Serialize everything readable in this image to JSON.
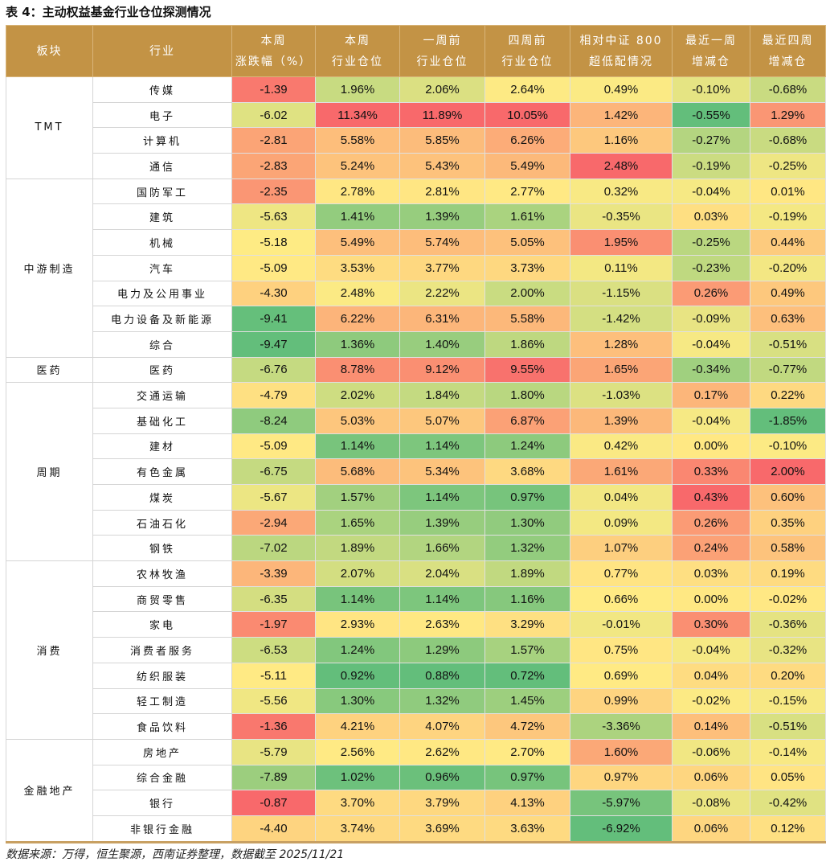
{
  "title": "表 4：主动权益基金行业仓位探测情况",
  "headers": [
    [
      "板块"
    ],
    [
      "行业"
    ],
    [
      "本周",
      "涨跌幅（%）"
    ],
    [
      "本周",
      "行业仓位"
    ],
    [
      "一周前",
      "行业仓位"
    ],
    [
      "四周前",
      "行业仓位"
    ],
    [
      "相对中证 800",
      "超低配情况"
    ],
    [
      "最近一周",
      "增减仓"
    ],
    [
      "最近四周",
      "增减仓"
    ]
  ],
  "color_scale": {
    "high": "#F8696B",
    "mid": "#FFEB84",
    "low": "#63BE7B"
  },
  "groups": [
    {
      "name": "TMT",
      "rows": [
        [
          "传媒",
          "-1.39",
          "1.96%",
          "2.06%",
          "2.64%",
          "0.49%",
          "-0.10%",
          "-0.68%"
        ],
        [
          "电子",
          "-6.02",
          "11.34%",
          "11.89%",
          "10.05%",
          "1.42%",
          "-0.55%",
          "1.29%"
        ],
        [
          "计算机",
          "-2.81",
          "5.58%",
          "5.85%",
          "6.26%",
          "1.16%",
          "-0.27%",
          "-0.68%"
        ],
        [
          "通信",
          "-2.83",
          "5.24%",
          "5.43%",
          "5.49%",
          "2.48%",
          "-0.19%",
          "-0.25%"
        ]
      ]
    },
    {
      "name": "中游制造",
      "rows": [
        [
          "国防军工",
          "-2.35",
          "2.78%",
          "2.81%",
          "2.77%",
          "0.32%",
          "-0.04%",
          "0.01%"
        ],
        [
          "建筑",
          "-5.63",
          "1.41%",
          "1.39%",
          "1.61%",
          "-0.35%",
          "0.03%",
          "-0.19%"
        ],
        [
          "机械",
          "-5.18",
          "5.49%",
          "5.74%",
          "5.05%",
          "1.95%",
          "-0.25%",
          "0.44%"
        ],
        [
          "汽车",
          "-5.09",
          "3.53%",
          "3.77%",
          "3.73%",
          "0.11%",
          "-0.23%",
          "-0.20%"
        ],
        [
          "电力及公用事业",
          "-4.30",
          "2.48%",
          "2.22%",
          "2.00%",
          "-1.15%",
          "0.26%",
          "0.49%"
        ],
        [
          "电力设备及新能源",
          "-9.41",
          "6.22%",
          "6.31%",
          "5.58%",
          "-1.42%",
          "-0.09%",
          "0.63%"
        ],
        [
          "综合",
          "-9.47",
          "1.36%",
          "1.40%",
          "1.86%",
          "1.28%",
          "-0.04%",
          "-0.51%"
        ]
      ]
    },
    {
      "name": "医药",
      "rows": [
        [
          "医药",
          "-6.76",
          "8.78%",
          "9.12%",
          "9.55%",
          "1.65%",
          "-0.34%",
          "-0.77%"
        ]
      ]
    },
    {
      "name": "周期",
      "rows": [
        [
          "交通运输",
          "-4.79",
          "2.02%",
          "1.84%",
          "1.80%",
          "-1.03%",
          "0.17%",
          "0.22%"
        ],
        [
          "基础化工",
          "-8.24",
          "5.03%",
          "5.07%",
          "6.87%",
          "1.39%",
          "-0.04%",
          "-1.85%"
        ],
        [
          "建材",
          "-5.09",
          "1.14%",
          "1.14%",
          "1.24%",
          "0.42%",
          "0.00%",
          "-0.10%"
        ],
        [
          "有色金属",
          "-6.75",
          "5.68%",
          "5.34%",
          "3.68%",
          "1.61%",
          "0.33%",
          "2.00%"
        ],
        [
          "煤炭",
          "-5.67",
          "1.57%",
          "1.14%",
          "0.97%",
          "0.04%",
          "0.43%",
          "0.60%"
        ],
        [
          "石油石化",
          "-2.94",
          "1.65%",
          "1.39%",
          "1.30%",
          "0.09%",
          "0.26%",
          "0.35%"
        ],
        [
          "钢铁",
          "-7.02",
          "1.89%",
          "1.66%",
          "1.32%",
          "1.07%",
          "0.24%",
          "0.58%"
        ]
      ]
    },
    {
      "name": "消费",
      "rows": [
        [
          "农林牧渔",
          "-3.39",
          "2.07%",
          "2.04%",
          "1.89%",
          "0.77%",
          "0.03%",
          "0.19%"
        ],
        [
          "商贸零售",
          "-6.35",
          "1.14%",
          "1.14%",
          "1.16%",
          "0.66%",
          "0.00%",
          "-0.02%"
        ],
        [
          "家电",
          "-1.97",
          "2.93%",
          "2.63%",
          "3.29%",
          "-0.01%",
          "0.30%",
          "-0.36%"
        ],
        [
          "消费者服务",
          "-6.53",
          "1.24%",
          "1.29%",
          "1.57%",
          "0.75%",
          "-0.04%",
          "-0.32%"
        ],
        [
          "纺织服装",
          "-5.11",
          "0.92%",
          "0.88%",
          "0.72%",
          "0.69%",
          "0.04%",
          "0.20%"
        ],
        [
          "轻工制造",
          "-5.56",
          "1.30%",
          "1.32%",
          "1.45%",
          "0.99%",
          "-0.02%",
          "-0.15%"
        ],
        [
          "食品饮料",
          "-1.36",
          "4.21%",
          "4.07%",
          "4.72%",
          "-3.36%",
          "0.14%",
          "-0.51%"
        ]
      ]
    },
    {
      "name": "金融地产",
      "rows": [
        [
          "房地产",
          "-5.79",
          "2.56%",
          "2.62%",
          "2.70%",
          "1.60%",
          "-0.06%",
          "-0.14%"
        ],
        [
          "综合金融",
          "-7.89",
          "1.02%",
          "0.96%",
          "0.97%",
          "0.97%",
          "0.06%",
          "0.05%"
        ],
        [
          "银行",
          "-0.87",
          "3.70%",
          "3.79%",
          "4.13%",
          "-5.97%",
          "-0.08%",
          "-0.42%"
        ],
        [
          "非银行金融",
          "-4.40",
          "3.74%",
          "3.69%",
          "3.63%",
          "-6.92%",
          "0.06%",
          "0.12%"
        ]
      ]
    }
  ],
  "source": "数据来源：万得，恒生聚源，西南证券整理，数据截至 2025/11/21"
}
